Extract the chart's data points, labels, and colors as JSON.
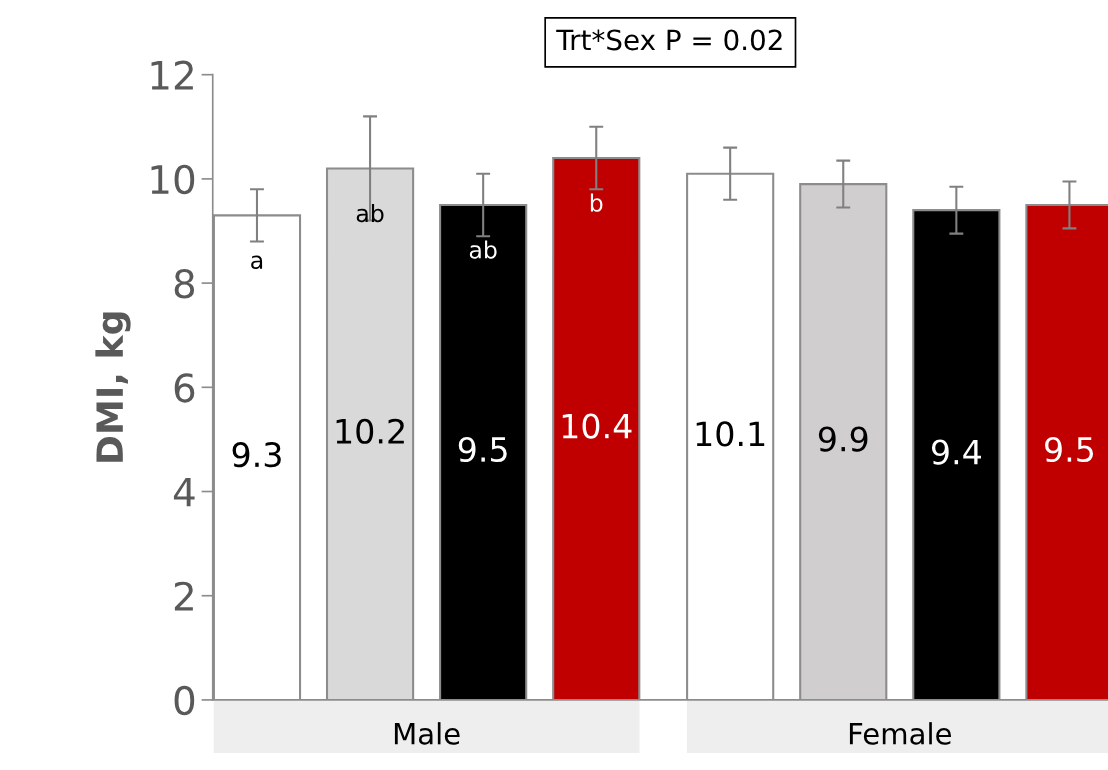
{
  "chart_data": {
    "type": "bar",
    "ylabel": "DMI, kg",
    "categories": [
      "Male",
      "Female"
    ],
    "series": [
      {
        "colors": [
          "#ffffff",
          "#ffffff"
        ],
        "values": [
          9.3,
          10.1
        ],
        "errors": [
          0.5,
          0.5
        ]
      },
      {
        "colors": [
          "#d9d9d9",
          "#d0cece"
        ],
        "values": [
          10.2,
          9.9
        ],
        "errors": [
          1.0,
          0.45
        ]
      },
      {
        "colors": [
          "#000000",
          "#000000"
        ],
        "values": [
          9.5,
          9.4
        ],
        "errors": [
          0.6,
          0.45
        ]
      },
      {
        "colors": [
          "#c00000",
          "#c00000"
        ],
        "values": [
          10.4,
          9.5
        ],
        "errors": [
          0.6,
          0.45
        ]
      }
    ],
    "data_labels": true,
    "annotations": [
      "a",
      "ab",
      "ab",
      "b",
      "Trt*Sex P = 0.02"
    ],
    "ylim": [
      0,
      12
    ],
    "yticks": [
      0,
      2,
      4,
      6,
      8,
      10,
      12
    ],
    "grid": false,
    "legend": false
  }
}
